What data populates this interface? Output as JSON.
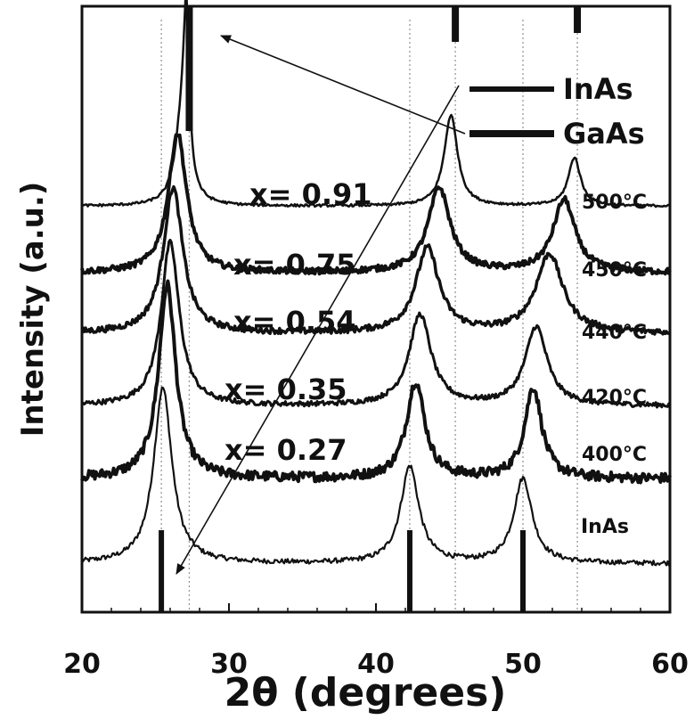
{
  "chart_data": {
    "type": "line",
    "xlabel": "2θ (degrees)",
    "ylabel": "Intensity (a.u.)",
    "xlim": [
      20,
      60
    ],
    "xticks": [
      20,
      30,
      40,
      50,
      60
    ],
    "legend": {
      "placement": "top-right",
      "entries": [
        {
          "name": "InAs",
          "stroke": "#111111",
          "width": 6
        },
        {
          "name": "GaAs",
          "stroke": "#111111",
          "width": 8
        }
      ]
    },
    "reference_lines": {
      "InAs": [
        25.4,
        42.3,
        50.0
      ],
      "GaAs": [
        27.3,
        45.4,
        53.7
      ]
    },
    "series": [
      {
        "temp": "InAs",
        "x_label": "",
        "base": 0.08,
        "peaks": [
          [
            25.5,
            0.29,
            0.75
          ],
          [
            42.3,
            0.16,
            0.75
          ],
          [
            50.0,
            0.14,
            0.75
          ]
        ],
        "noise": 0.004,
        "stroke_width": 2.2
      },
      {
        "temp": "400°C",
        "x_label": "x= 0.27",
        "base": 0.22,
        "peaks": [
          [
            25.8,
            0.32,
            0.7
          ],
          [
            42.7,
            0.16,
            0.75
          ],
          [
            50.7,
            0.15,
            0.7
          ]
        ],
        "noise": 0.008,
        "stroke_width": 4
      },
      {
        "temp": "420°C",
        "x_label": "x= 0.35",
        "base": 0.34,
        "peaks": [
          [
            26.0,
            0.27,
            0.75
          ],
          [
            43.0,
            0.15,
            0.9
          ],
          [
            50.9,
            0.13,
            0.9
          ]
        ],
        "noise": 0.004,
        "stroke_width": 3
      },
      {
        "temp": "440°C",
        "x_label": "x= 0.54",
        "base": 0.46,
        "peaks": [
          [
            26.2,
            0.24,
            0.8
          ],
          [
            43.5,
            0.14,
            0.95
          ],
          [
            51.8,
            0.13,
            1.1
          ]
        ],
        "noise": 0.005,
        "stroke_width": 3.5
      },
      {
        "temp": "450°C",
        "x_label": "x= 0.75",
        "base": 0.56,
        "peaks": [
          [
            26.5,
            0.23,
            0.75
          ],
          [
            44.3,
            0.14,
            0.9
          ],
          [
            52.8,
            0.12,
            0.9
          ]
        ],
        "noise": 0.005,
        "stroke_width": 4
      },
      {
        "temp": "500°C",
        "x_label": "x= 0.91",
        "base": 0.67,
        "peaks": [
          [
            26.8,
            0.13,
            0.55
          ],
          [
            27.1,
            0.25,
            0.22
          ],
          [
            45.1,
            0.15,
            0.55
          ],
          [
            53.5,
            0.08,
            0.5
          ]
        ],
        "noise": 0.002,
        "stroke_width": 2.5
      }
    ]
  }
}
